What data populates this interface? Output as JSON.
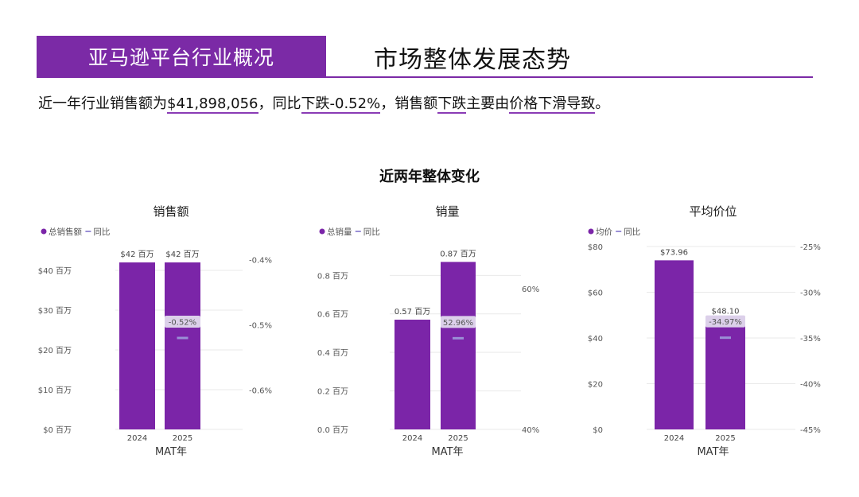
{
  "header": {
    "section_tag": "亚马逊平台行业概况",
    "title": "市场整体发展态势"
  },
  "summary": {
    "p1": "近一年行业销售额为",
    "amount": "$41,898,056",
    "p2": "，同比",
    "change": "下跌-0.52%",
    "p3": "，销售额",
    "drop": "下跌",
    "p4": "主要由",
    "reason": "价格下滑导致",
    "p5": "。"
  },
  "overall_title": "近两年整体变化",
  "colors": {
    "accent": "#7b2aa6",
    "bar": "#7b25a8",
    "yoy_marker": "#9a8fd6",
    "yoy_label_bg": "#dcd0ea"
  },
  "chart_data": [
    {
      "type": "bar",
      "title": "销售额",
      "legend": [
        "总销售额",
        "同比"
      ],
      "categories": [
        "2024",
        "2025"
      ],
      "values": [
        42,
        42
      ],
      "bar_labels": [
        "$42 百万",
        "$42 百万"
      ],
      "ylim": [
        0,
        46
      ],
      "yticks": [
        0,
        10,
        20,
        30,
        40
      ],
      "ytick_labels": [
        "$0 百万",
        "$10 百万",
        "$20 百万",
        "$30 百万",
        "$40 百万"
      ],
      "yoy": {
        "category": "2025",
        "value": -0.52,
        "label": "-0.52%"
      },
      "y2lim": [
        -0.66,
        -0.38
      ],
      "y2ticks": [
        -0.6,
        -0.5,
        -0.4
      ],
      "y2tick_labels": [
        "-0.6%",
        "-0.5%",
        "-0.4%"
      ],
      "xlabel": "MAT年"
    },
    {
      "type": "bar",
      "title": "销量",
      "legend": [
        "总销量",
        "同比"
      ],
      "categories": [
        "2024",
        "2025"
      ],
      "values": [
        0.57,
        0.87
      ],
      "bar_labels": [
        "0.57 百万",
        "0.87 百万"
      ],
      "ylim": [
        0,
        0.95
      ],
      "yticks": [
        0,
        0.2,
        0.4,
        0.6,
        0.8
      ],
      "ytick_labels": [
        "0.0 百万",
        "0.2 百万",
        "0.4 百万",
        "0.6 百万",
        "0.8 百万"
      ],
      "yoy": {
        "category": "2025",
        "value": 52.96,
        "label": "52.96%"
      },
      "y2lim": [
        40,
        66
      ],
      "y2ticks": [
        40,
        60
      ],
      "y2tick_labels": [
        "40%",
        "60%"
      ],
      "xlabel": "MAT年"
    },
    {
      "type": "bar",
      "title": "平均价位",
      "legend": [
        "均价",
        "同比"
      ],
      "categories": [
        "2024",
        "2025"
      ],
      "values": [
        73.96,
        48.1
      ],
      "bar_labels": [
        "$73.96",
        "$48.10"
      ],
      "ylim": [
        0,
        80
      ],
      "yticks": [
        0,
        20,
        40,
        60,
        80
      ],
      "ytick_labels": [
        "$0",
        "$20",
        "$40",
        "$60",
        "$80"
      ],
      "yoy": {
        "category": "2025",
        "value": -34.97,
        "label": "-34.97%"
      },
      "y2lim": [
        -45,
        -25
      ],
      "y2ticks": [
        -45,
        -40,
        -35,
        -30,
        -25
      ],
      "y2tick_labels": [
        "-45%",
        "-40%",
        "-35%",
        "-30%",
        "-25%"
      ],
      "xlabel": "MAT年"
    }
  ]
}
